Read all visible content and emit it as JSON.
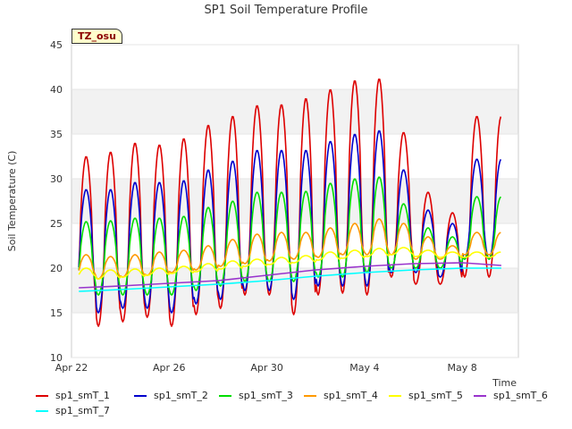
{
  "chart_data": {
    "type": "line",
    "title": "SP1 Soil Temperature Profile",
    "xlabel": "Time",
    "ylabel": "Soil Temperature (C)",
    "badge": "TZ_osu",
    "xlim": [
      0,
      18.3
    ],
    "ylim": [
      10,
      45
    ],
    "yticks": [
      10,
      15,
      20,
      25,
      30,
      35,
      40,
      45
    ],
    "xticks": [
      {
        "day": 0,
        "label": "Apr 22"
      },
      {
        "day": 4,
        "label": "Apr 26"
      },
      {
        "day": 8,
        "label": "Apr 30"
      },
      {
        "day": 12,
        "label": "May 4"
      },
      {
        "day": 16,
        "label": "May 8"
      }
    ],
    "x_start_day": 0.3,
    "x_end_day": 17.6,
    "peak_phase_day": 0.6,
    "series": [
      {
        "name": "sp1_smT_1",
        "color": "#dd0000",
        "maxima": [
          32.5,
          33.0,
          34.0,
          33.8,
          34.5,
          36.0,
          37.0,
          38.2,
          38.3,
          39.0,
          40.0,
          41.0,
          41.2,
          35.2,
          28.5,
          26.2,
          37.0
        ],
        "minima": [
          15.0,
          13.5,
          14.0,
          14.5,
          13.5,
          14.8,
          15.5,
          17.0,
          17.0,
          14.8,
          17.0,
          17.2,
          17.0,
          19.0,
          18.2,
          18.2,
          19.0
        ]
      },
      {
        "name": "sp1_smT_2",
        "color": "#0000cc",
        "maxima": [
          28.8,
          28.8,
          29.6,
          29.6,
          29.8,
          31.0,
          32.0,
          33.2,
          33.2,
          33.2,
          34.2,
          35.0,
          35.4,
          31.0,
          26.5,
          25.0,
          32.2
        ],
        "minima": [
          16.5,
          15.0,
          15.5,
          15.5,
          15.0,
          16.0,
          16.5,
          17.5,
          17.5,
          16.5,
          18.0,
          18.0,
          18.0,
          19.5,
          19.5,
          19.0,
          21.0
        ]
      },
      {
        "name": "sp1_smT_3",
        "color": "#00dd00",
        "maxima": [
          25.2,
          25.3,
          25.6,
          25.6,
          25.8,
          26.8,
          27.5,
          28.5,
          28.5,
          28.6,
          29.5,
          30.0,
          30.2,
          27.2,
          24.5,
          23.5,
          28.0
        ],
        "minima": [
          17.5,
          17.0,
          17.0,
          17.0,
          17.0,
          17.5,
          18.0,
          18.5,
          18.5,
          18.5,
          19.0,
          19.0,
          19.5,
          20.0,
          20.0,
          20.0,
          21.0
        ]
      },
      {
        "name": "sp1_smT_4",
        "color": "#ff9900",
        "maxima": [
          21.5,
          21.3,
          21.5,
          21.8,
          22.0,
          22.5,
          23.2,
          23.8,
          24.0,
          24.0,
          24.5,
          25.0,
          25.5,
          25.0,
          23.5,
          22.5,
          24.0
        ],
        "minima": [
          19.0,
          18.8,
          19.0,
          19.2,
          19.5,
          19.8,
          20.2,
          20.5,
          20.8,
          21.0,
          21.2,
          21.5,
          21.5,
          21.5,
          21.0,
          21.0,
          21.5
        ]
      },
      {
        "name": "sp1_smT_5",
        "color": "#ffff00",
        "maxima": [
          20.0,
          19.8,
          19.9,
          20.0,
          20.2,
          20.5,
          20.8,
          21.0,
          21.2,
          21.4,
          21.8,
          22.0,
          22.2,
          22.3,
          22.0,
          21.8,
          21.8
        ],
        "minima": [
          19.0,
          18.8,
          19.0,
          19.2,
          19.4,
          19.6,
          19.9,
          20.2,
          20.4,
          20.6,
          20.9,
          21.1,
          21.3,
          21.5,
          21.3,
          21.2,
          21.2
        ]
      },
      {
        "name": "sp1_smT_6",
        "color": "#9933cc",
        "points": [
          [
            0.3,
            17.8
          ],
          [
            2,
            18.0
          ],
          [
            4,
            18.3
          ],
          [
            6,
            18.6
          ],
          [
            8,
            19.2
          ],
          [
            10,
            19.8
          ],
          [
            12,
            20.2
          ],
          [
            14,
            20.5
          ],
          [
            16,
            20.6
          ],
          [
            17.6,
            20.3
          ]
        ]
      },
      {
        "name": "sp1_smT_7",
        "color": "#00ffff",
        "points": [
          [
            0.3,
            17.4
          ],
          [
            2,
            17.6
          ],
          [
            4,
            17.9
          ],
          [
            6,
            18.2
          ],
          [
            8,
            18.6
          ],
          [
            10,
            19.1
          ],
          [
            12,
            19.5
          ],
          [
            14,
            19.8
          ],
          [
            16,
            20.0
          ],
          [
            17.6,
            20.0
          ]
        ]
      }
    ]
  }
}
